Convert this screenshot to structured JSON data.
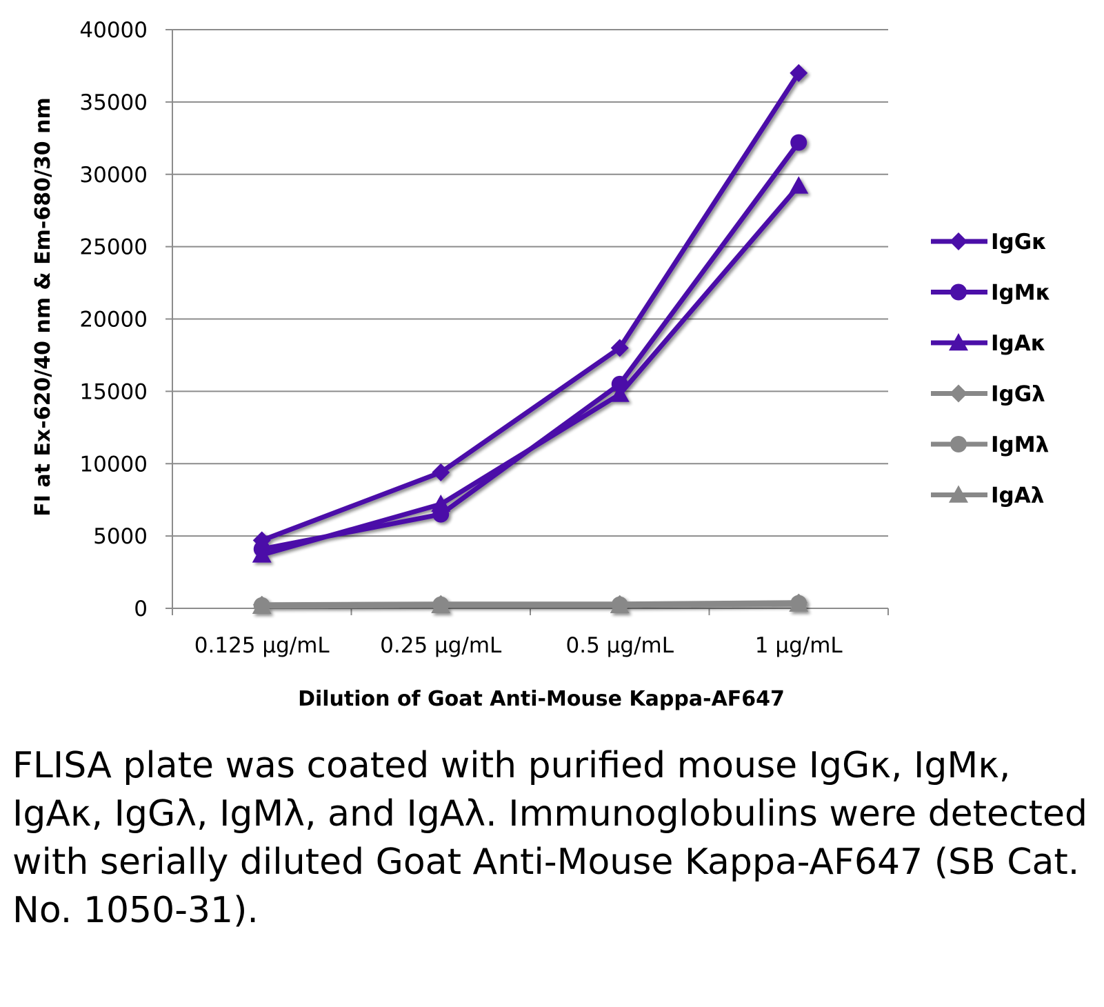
{
  "chart_data": {
    "type": "line",
    "categories": [
      "0.125 µg/mL",
      "0.25 µg/mL",
      "0.5 µg/mL",
      "1 µg/mL"
    ],
    "ylabel": "FI at Ex-620/40 nm & Em-680/30 nm",
    "xlabel": "Dilution of Goat Anti-Mouse Kappa-AF647",
    "ylim": [
      0,
      40000
    ],
    "yticks": [
      0,
      5000,
      10000,
      15000,
      20000,
      25000,
      30000,
      35000,
      40000
    ],
    "grid": true,
    "legend_position": "right",
    "series": [
      {
        "name": "IgGκ",
        "marker": "diamond",
        "color": "#4b0fa8",
        "values": [
          4700,
          9400,
          18000,
          37000
        ]
      },
      {
        "name": "IgMκ",
        "marker": "circle",
        "color": "#4b0fa8",
        "values": [
          4100,
          6500,
          15500,
          32200
        ]
      },
      {
        "name": "IgAκ",
        "marker": "triangle",
        "color": "#4b0fa8",
        "values": [
          3700,
          7200,
          14800,
          29200
        ]
      },
      {
        "name": "IgGλ",
        "marker": "diamond",
        "color": "#888888",
        "values": [
          250,
          300,
          300,
          400
        ]
      },
      {
        "name": "IgMλ",
        "marker": "circle",
        "color": "#888888",
        "values": [
          200,
          250,
          250,
          350
        ]
      },
      {
        "name": "IgAλ",
        "marker": "triangle",
        "color": "#888888",
        "values": [
          150,
          200,
          200,
          300
        ]
      }
    ]
  },
  "caption": "FLISA plate was coated with purified mouse IgGκ, IgMκ, IgAκ, IgGλ, IgMλ, and IgAλ. Immunoglobulins were detected with serially diluted Goat Anti-Mouse Kappa-AF647 (SB Cat. No. 1050-31)."
}
